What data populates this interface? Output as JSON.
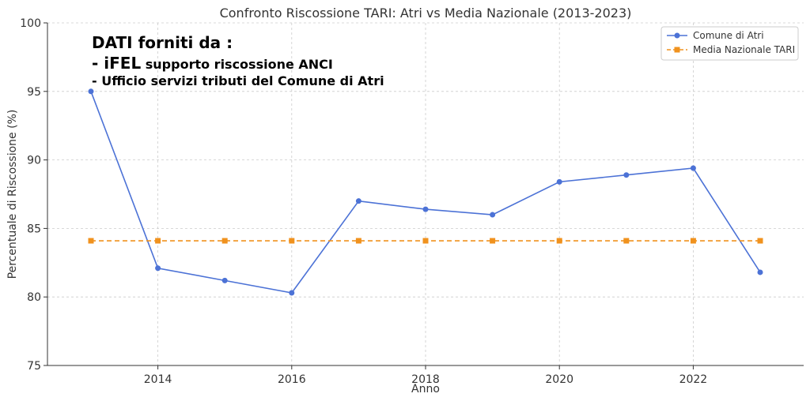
{
  "chart_data": {
    "type": "line",
    "title": "Confronto Riscossione TARI: Atri vs Media Nazionale (2013-2023)",
    "xlabel": "Anno",
    "ylabel": "Percentuale di Riscossione (%)",
    "x": [
      2013,
      2014,
      2015,
      2016,
      2017,
      2018,
      2019,
      2020,
      2021,
      2022,
      2023
    ],
    "xlim": [
      2012.35,
      2023.65
    ],
    "ylim": [
      75,
      100
    ],
    "xticks": [
      "2014",
      "2016",
      "2018",
      "2020",
      "2022"
    ],
    "yticks": [
      "75",
      "80",
      "85",
      "90",
      "95",
      "100"
    ],
    "grid": true,
    "legend_position": "top-right",
    "series": [
      {
        "name": "Comune di Atri",
        "color": "#4C72D6",
        "marker": "circle",
        "linestyle": "solid",
        "values": [
          95.0,
          82.1,
          81.2,
          80.3,
          87.0,
          86.4,
          86.0,
          88.4,
          88.9,
          89.4,
          81.8
        ]
      },
      {
        "name": "Media Nazionale TARI",
        "color": "#F0921E",
        "marker": "square",
        "linestyle": "dashed",
        "values": [
          84.1,
          84.1,
          84.1,
          84.1,
          84.1,
          84.1,
          84.1,
          84.1,
          84.1,
          84.1,
          84.1
        ]
      }
    ],
    "annotation": {
      "heading": "DATI forniti da :",
      "line1_prefix": "- iFEL",
      "line1_rest": " supporto riscossione ANCI",
      "line2": "-  Ufficio servizi tributi del Comune di Atri"
    }
  }
}
